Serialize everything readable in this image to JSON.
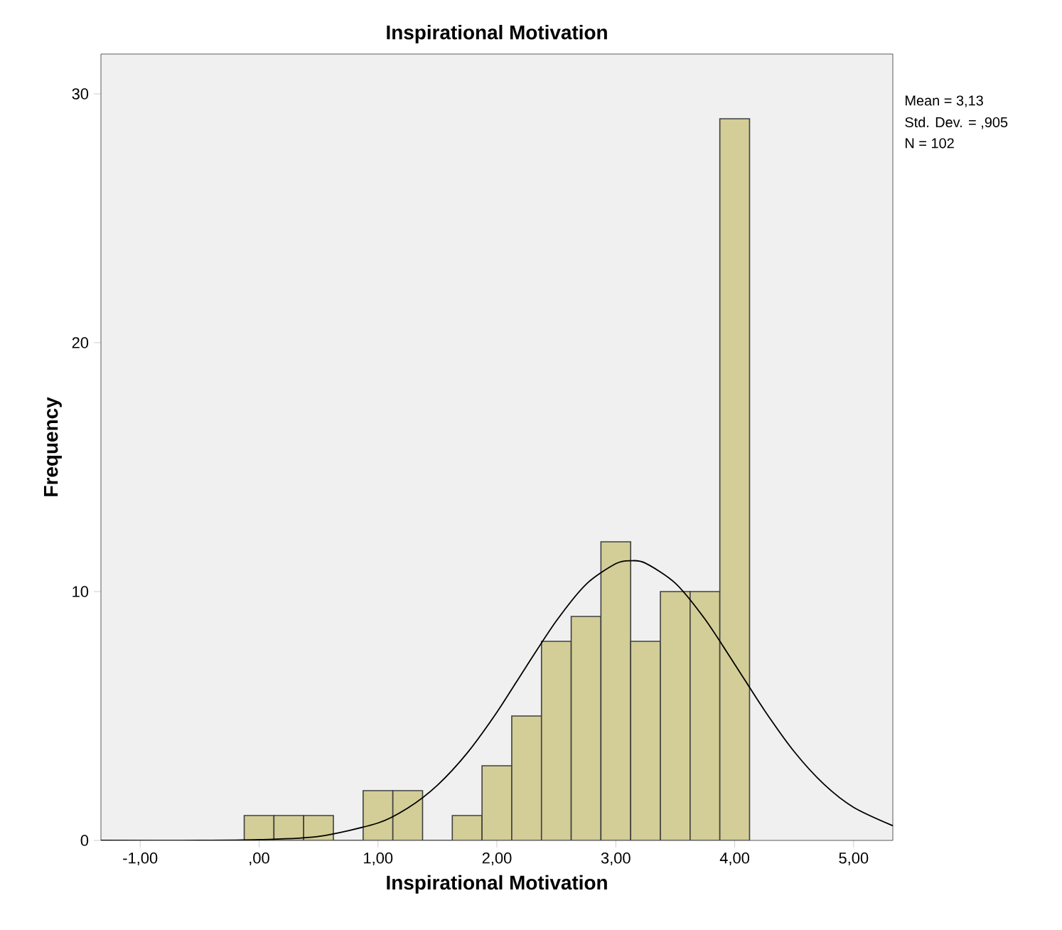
{
  "chart_data": {
    "type": "histogram",
    "title": "Inspirational Motivation",
    "xlabel": "Inspirational Motivation",
    "ylabel": "Frequency",
    "annotations": [
      "Mean = 3,13",
      "Std. Dev. = ,905",
      "N = 102"
    ],
    "series": [
      {
        "color": "#d3ce97",
        "bins": [
          -0.125,
          0.125,
          0.375,
          0.625,
          0.875,
          1.125,
          1.375,
          1.625,
          1.875,
          2.125,
          2.375,
          2.625,
          2.875,
          3.125,
          3.375,
          3.625,
          3.875,
          4.125
        ],
        "values": [
          1,
          1,
          1,
          0,
          2,
          2,
          0,
          1,
          3,
          5,
          8,
          9,
          12,
          8,
          10,
          10,
          29
        ]
      },
      {
        "type": "line",
        "color": "#000000",
        "x": [
          -1.33,
          -0.5,
          0,
          0.5,
          1,
          1.25,
          1.5,
          1.75,
          2,
          2.25,
          2.5,
          2.75,
          3,
          3.13,
          3.25,
          3.5,
          3.75,
          4,
          4.25,
          4.5,
          4.75,
          5,
          5.33
        ],
        "values": [
          0,
          0,
          0.03,
          0.16,
          0.7,
          1.3,
          2.22,
          3.51,
          5.15,
          7.01,
          8.82,
          10.29,
          11.12,
          11.24,
          11.14,
          10.34,
          8.89,
          7.08,
          5.23,
          3.57,
          2.26,
          1.33,
          0.59
        ]
      }
    ],
    "xlim": [
      -1.33,
      5.33
    ],
    "ylim": [
      0,
      31.6
    ],
    "xticks": [
      {
        "value": -1,
        "label": "-1,00"
      },
      {
        "value": 0,
        "label": ",00"
      },
      {
        "value": 1,
        "label": "1,00"
      },
      {
        "value": 2,
        "label": "2,00"
      },
      {
        "value": 3,
        "label": "3,00"
      },
      {
        "value": 4,
        "label": "4,00"
      },
      {
        "value": 5,
        "label": "5,00"
      }
    ],
    "yticks": [
      0,
      10,
      20,
      30
    ],
    "grid": false,
    "marker": "none",
    "line_style": "solid"
  }
}
